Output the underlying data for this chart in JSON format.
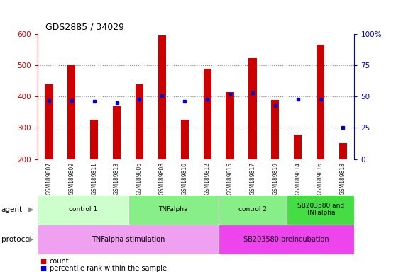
{
  "title": "GDS2885 / 34029",
  "samples": [
    "GSM189807",
    "GSM189809",
    "GSM189811",
    "GSM189813",
    "GSM189806",
    "GSM189808",
    "GSM189810",
    "GSM189812",
    "GSM189815",
    "GSM189817",
    "GSM189819",
    "GSM189814",
    "GSM189816",
    "GSM189818"
  ],
  "count_values": [
    440,
    500,
    325,
    370,
    440,
    595,
    325,
    490,
    415,
    523,
    390,
    278,
    565,
    252
  ],
  "percentile_values": [
    47,
    47,
    46,
    45,
    48,
    51,
    46,
    48,
    52,
    53,
    43,
    48,
    48,
    25
  ],
  "ymin": 200,
  "ymax": 600,
  "yticks_left": [
    200,
    300,
    400,
    500,
    600
  ],
  "yticks_right": [
    0,
    25,
    50,
    75,
    100
  ],
  "bar_color": "#cc0000",
  "dot_color": "#0000cc",
  "agent_groups": [
    {
      "label": "control 1",
      "start": 0,
      "end": 4,
      "color": "#ccffcc"
    },
    {
      "label": "TNFalpha",
      "start": 4,
      "end": 8,
      "color": "#88ee88"
    },
    {
      "label": "control 2",
      "start": 8,
      "end": 11,
      "color": "#88ee88"
    },
    {
      "label": "SB203580 and\nTNFalpha",
      "start": 11,
      "end": 14,
      "color": "#44dd44"
    }
  ],
  "protocol_groups": [
    {
      "label": "TNFalpha stimulation",
      "start": 0,
      "end": 8,
      "color": "#f0a0f0"
    },
    {
      "label": "SB203580 preincubation",
      "start": 8,
      "end": 14,
      "color": "#ee44ee"
    }
  ],
  "left_label_color": "#cc0000",
  "right_label_color": "#0000cc",
  "grid_color": "#888888",
  "sample_bg_color": "#cccccc",
  "bar_width": 0.35
}
